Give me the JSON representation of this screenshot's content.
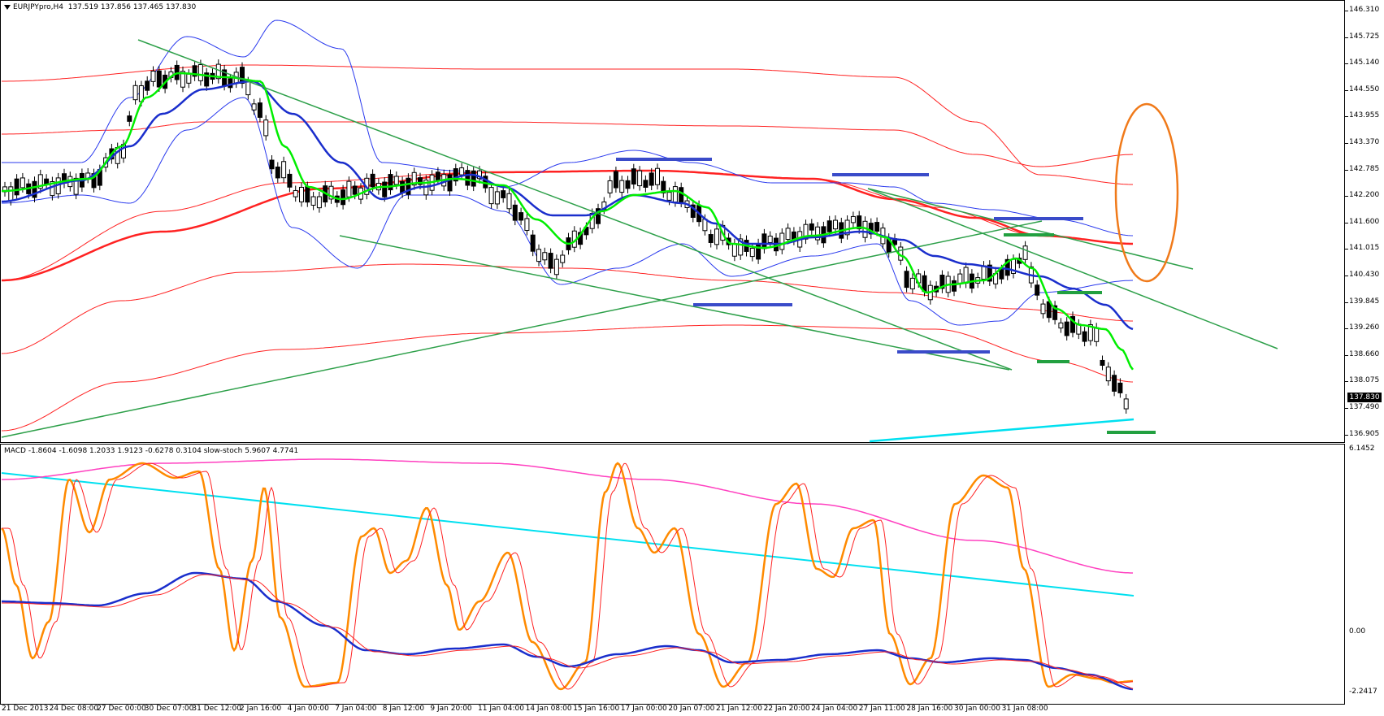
{
  "header": {
    "symbol": "EURJPYpro,H4",
    "ohlc": "137.519 137.856 137.465 137.830"
  },
  "sub_header": {
    "text": "MACD -1.8604 -1.6098 1.2033 1.9123 -0.6278 0.3104 slow-stoch 5.9607 4.7741"
  },
  "current_price": "137.830",
  "price_scale": [
    "146.310",
    "145.725",
    "145.140",
    "144.550",
    "143.955",
    "143.370",
    "142.785",
    "142.200",
    "141.600",
    "141.015",
    "140.430",
    "139.845",
    "139.260",
    "138.660",
    "138.075",
    "137.490",
    "136.905"
  ],
  "sub_scale": [
    "6.1452",
    "0.00",
    "-2.2417"
  ],
  "time_axis": [
    "21 Dec 2013",
    "24 Dec 08:00",
    "27 Dec 00:00",
    "30 Dec 07:00",
    "31 Dec 12:00",
    "2 Jan 16:00",
    "4 Jan 00:00",
    "7 Jan 04:00",
    "8 Jan 12:00",
    "9 Jan 20:00",
    "11 Jan 04:00",
    "14 Jan 08:00",
    "15 Jan 16:00",
    "17 Jan 00:00",
    "20 Jan 07:00",
    "21 Jan 12:00",
    "22 Jan 20:00",
    "24 Jan 04:00",
    "27 Jan 11:00",
    "28 Jan 16:00",
    "30 Jan 00:00",
    "31 Jan 08:00"
  ],
  "colors": {
    "bull_candle": "#ffffff",
    "bear_candle": "#000000",
    "fast_ma": "#00ee00",
    "slow_ma": "#1a2ecc",
    "bands_outer": "#ff2222",
    "bands_inner": "#2a3aee",
    "trendline": "#2ea04a",
    "level_blue": "#3a4bc9",
    "level_green": "#22a040",
    "long_ma": "#00e0f0",
    "ellipse": "#f07a1a",
    "stoch_main": "#ff8a00",
    "stoch_signal": "#ff2222",
    "macd_main": "#1a2ecc",
    "macd_signal": "#ff2222",
    "macd_ma_a": "#00e0f0",
    "macd_ma_b": "#ff40c0"
  }
}
